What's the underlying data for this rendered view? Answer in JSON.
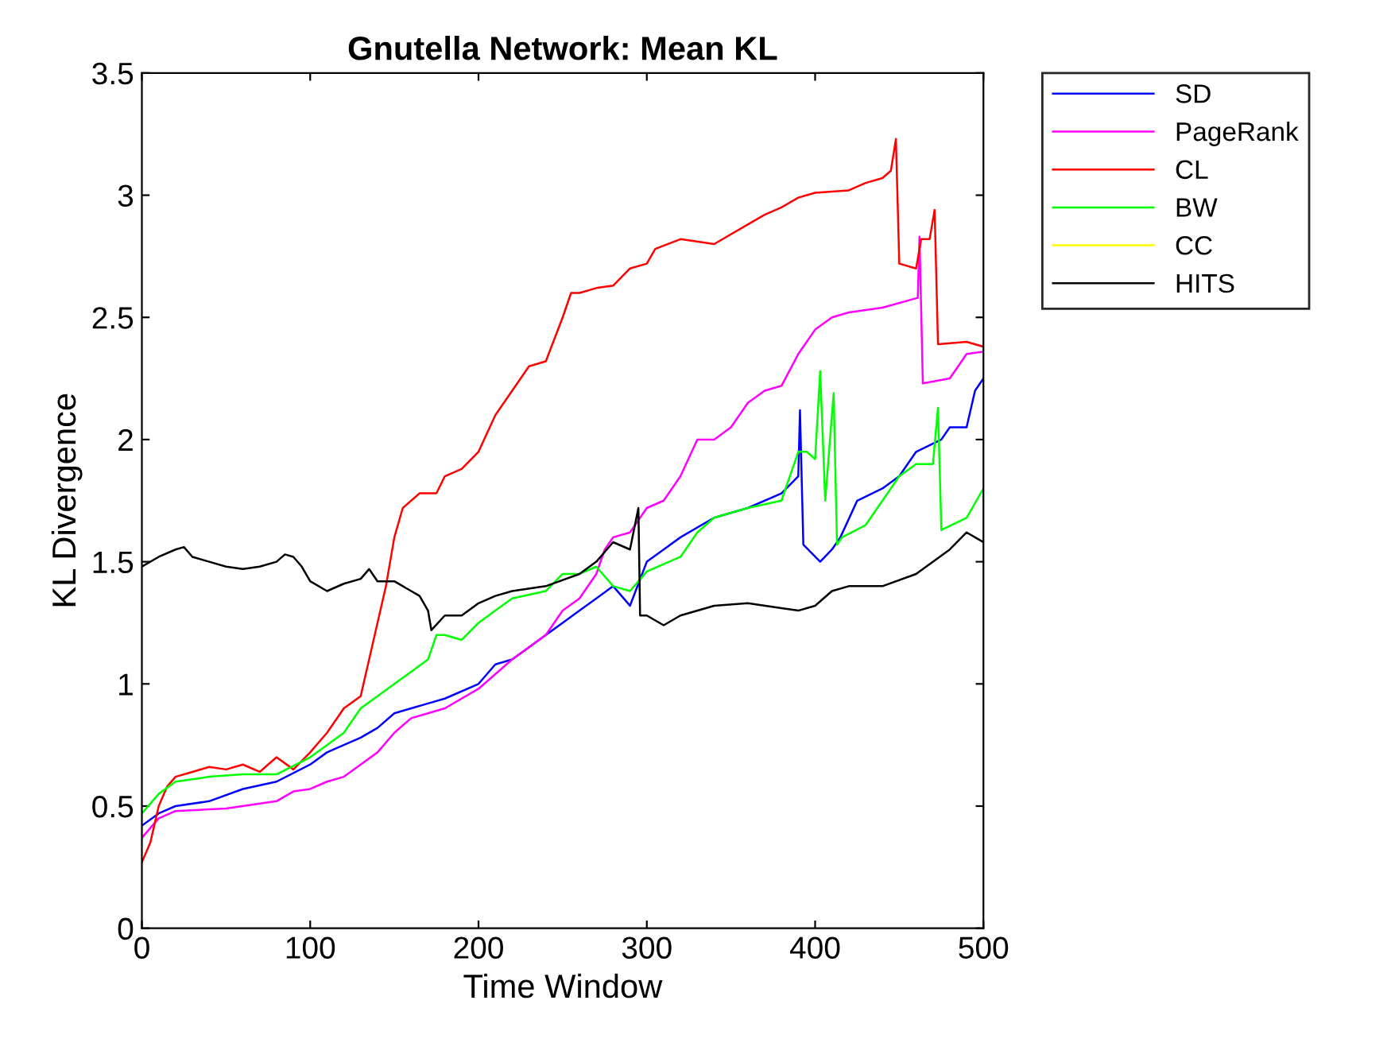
{
  "chart_data": {
    "type": "line",
    "title": "Gnutella Network: Mean KL",
    "xlabel": "Time Window",
    "ylabel": "KL Divergence",
    "xlim": [
      0,
      500
    ],
    "xticks": [
      0,
      100,
      200,
      300,
      400,
      500
    ],
    "ylim": [
      0,
      3.5
    ],
    "yticks": [
      0,
      0.5,
      1,
      1.5,
      2,
      2.5,
      3,
      3.5
    ],
    "grid": false,
    "legend": "top right",
    "line_style": "solid",
    "marker": "none",
    "series": [
      {
        "name": "SD",
        "color": "#0000ff",
        "x": [
          0,
          10,
          20,
          40,
          60,
          80,
          100,
          110,
          120,
          130,
          140,
          150,
          160,
          170,
          180,
          200,
          210,
          220,
          230,
          240,
          250,
          260,
          270,
          280,
          290,
          300,
          310,
          320,
          340,
          360,
          380,
          390,
          391,
          393,
          403,
          410,
          415,
          425,
          440,
          450,
          460,
          475,
          480,
          490,
          495,
          500
        ],
        "values": [
          0.42,
          0.47,
          0.5,
          0.52,
          0.57,
          0.6,
          0.67,
          0.72,
          0.75,
          0.78,
          0.82,
          0.88,
          0.9,
          0.92,
          0.94,
          1.0,
          1.08,
          1.1,
          1.15,
          1.2,
          1.25,
          1.3,
          1.35,
          1.4,
          1.32,
          1.5,
          1.55,
          1.6,
          1.68,
          1.72,
          1.78,
          1.85,
          2.12,
          1.57,
          1.5,
          1.55,
          1.6,
          1.75,
          1.8,
          1.85,
          1.95,
          2.0,
          2.05,
          2.05,
          2.2,
          2.25
        ]
      },
      {
        "name": "PageRank",
        "color": "#ff00ff",
        "x": [
          0,
          10,
          20,
          50,
          80,
          90,
          100,
          110,
          120,
          130,
          140,
          150,
          160,
          170,
          180,
          200,
          220,
          240,
          250,
          260,
          270,
          275,
          280,
          290,
          300,
          310,
          320,
          330,
          340,
          350,
          360,
          370,
          380,
          390,
          400,
          410,
          420,
          440,
          461,
          462,
          464,
          480,
          485,
          490,
          500
        ],
        "values": [
          0.37,
          0.45,
          0.48,
          0.49,
          0.52,
          0.56,
          0.57,
          0.6,
          0.62,
          0.67,
          0.72,
          0.8,
          0.86,
          0.88,
          0.9,
          0.98,
          1.1,
          1.2,
          1.3,
          1.35,
          1.45,
          1.55,
          1.6,
          1.62,
          1.72,
          1.75,
          1.85,
          2.0,
          2.0,
          2.05,
          2.15,
          2.2,
          2.22,
          2.35,
          2.45,
          2.5,
          2.52,
          2.54,
          2.58,
          2.83,
          2.23,
          2.25,
          2.3,
          2.35,
          2.36
        ]
      },
      {
        "name": "CL",
        "color": "#ff0000",
        "x": [
          0,
          5,
          10,
          15,
          20,
          30,
          40,
          50,
          60,
          70,
          80,
          90,
          100,
          110,
          120,
          130,
          140,
          145,
          150,
          155,
          165,
          175,
          180,
          190,
          200,
          210,
          220,
          230,
          240,
          250,
          255,
          260,
          270,
          280,
          290,
          300,
          305,
          320,
          340,
          360,
          370,
          380,
          390,
          400,
          420,
          430,
          440,
          445,
          448,
          450,
          460,
          463,
          468,
          471,
          473,
          490,
          500
        ],
        "values": [
          0.27,
          0.35,
          0.5,
          0.58,
          0.62,
          0.64,
          0.66,
          0.65,
          0.67,
          0.64,
          0.7,
          0.65,
          0.72,
          0.8,
          0.9,
          0.95,
          1.25,
          1.4,
          1.6,
          1.72,
          1.78,
          1.78,
          1.85,
          1.88,
          1.95,
          2.1,
          2.2,
          2.3,
          2.32,
          2.5,
          2.6,
          2.6,
          2.62,
          2.63,
          2.7,
          2.72,
          2.78,
          2.82,
          2.8,
          2.88,
          2.92,
          2.95,
          2.99,
          3.01,
          3.02,
          3.05,
          3.07,
          3.1,
          3.23,
          2.72,
          2.7,
          2.82,
          2.82,
          2.94,
          2.39,
          2.4,
          2.38
        ]
      },
      {
        "name": "BW",
        "color": "#00ff00",
        "x": [
          0,
          10,
          20,
          40,
          60,
          80,
          100,
          110,
          120,
          130,
          140,
          150,
          160,
          170,
          175,
          180,
          190,
          200,
          210,
          220,
          240,
          250,
          260,
          270,
          280,
          290,
          300,
          320,
          330,
          340,
          360,
          380,
          390,
          395,
          400,
          403,
          406,
          411,
          413,
          416,
          430,
          440,
          450,
          460,
          470,
          473,
          475,
          490,
          500
        ],
        "values": [
          0.47,
          0.55,
          0.6,
          0.62,
          0.63,
          0.63,
          0.7,
          0.75,
          0.8,
          0.9,
          0.95,
          1.0,
          1.05,
          1.1,
          1.2,
          1.2,
          1.18,
          1.25,
          1.3,
          1.35,
          1.38,
          1.45,
          1.45,
          1.48,
          1.4,
          1.38,
          1.46,
          1.52,
          1.62,
          1.68,
          1.72,
          1.75,
          1.95,
          1.95,
          1.92,
          2.28,
          1.75,
          2.19,
          1.57,
          1.6,
          1.65,
          1.75,
          1.85,
          1.9,
          1.9,
          2.13,
          1.63,
          1.68,
          1.8
        ]
      },
      {
        "name": "CC",
        "color": "#ffff00"
      },
      {
        "name": "HITS",
        "color": "#000000",
        "x": [
          0,
          10,
          20,
          25,
          30,
          40,
          50,
          60,
          70,
          80,
          85,
          90,
          95,
          100,
          110,
          120,
          130,
          135,
          140,
          150,
          160,
          165,
          170,
          172,
          180,
          190,
          200,
          210,
          220,
          240,
          260,
          270,
          280,
          290,
          295,
          296,
          300,
          310,
          320,
          340,
          360,
          380,
          390,
          400,
          410,
          420,
          440,
          460,
          480,
          490,
          495,
          500
        ],
        "values": [
          1.48,
          1.52,
          1.55,
          1.56,
          1.52,
          1.5,
          1.48,
          1.47,
          1.48,
          1.5,
          1.53,
          1.52,
          1.48,
          1.42,
          1.38,
          1.41,
          1.43,
          1.47,
          1.42,
          1.42,
          1.38,
          1.36,
          1.3,
          1.22,
          1.28,
          1.28,
          1.33,
          1.36,
          1.38,
          1.4,
          1.45,
          1.5,
          1.58,
          1.55,
          1.72,
          1.28,
          1.28,
          1.24,
          1.28,
          1.32,
          1.33,
          1.31,
          1.3,
          1.32,
          1.38,
          1.4,
          1.4,
          1.45,
          1.55,
          1.62,
          1.6,
          1.58
        ]
      }
    ]
  }
}
